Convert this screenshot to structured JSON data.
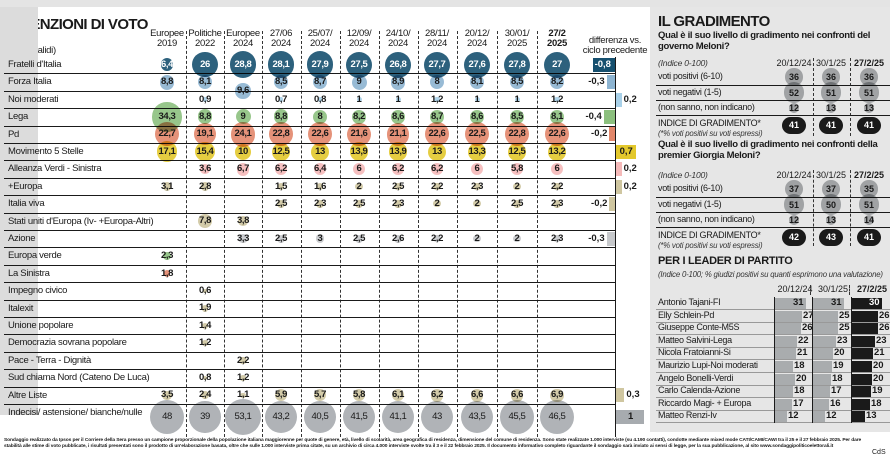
{
  "chart_data": {
    "type": "table",
    "title": "INTENZIONI DI VOTO",
    "label_header": [
      "LISTE",
      "(% su validi)"
    ],
    "columns": [
      [
        "Europee",
        "2019"
      ],
      [
        "Politiche",
        "2022"
      ],
      [
        "Europee",
        "2024"
      ],
      [
        "27/06",
        "2024"
      ],
      [
        "25/07/",
        "2024"
      ],
      [
        "12/09/",
        "2024"
      ],
      [
        "24/10/",
        "2024"
      ],
      [
        "28/11/",
        "2024"
      ],
      [
        "20/12/",
        "2024"
      ],
      [
        "30/01/",
        "2025"
      ],
      [
        "27/2",
        "2025"
      ]
    ],
    "diff_header": [
      "differenza vs.",
      "ciclo precedente"
    ],
    "rows": [
      {
        "name": "Fratelli d'Italia",
        "color": "#16506f",
        "values": [
          "6,4",
          "26",
          "28,8",
          "28,1",
          "27,9",
          "27,5",
          "26,8",
          "27,7",
          "27,6",
          "27,8",
          "27"
        ],
        "diff": "-0,8"
      },
      {
        "name": "Forza Italia",
        "color": "#8db4d1",
        "values": [
          "8,8",
          "8,1",
          "9,6",
          "8,5",
          "8,7",
          "9",
          "8,9",
          "8",
          "8,1",
          "8,5",
          "8,2"
        ],
        "diff": "-0,3",
        "combined_with_next_in": [
          2
        ]
      },
      {
        "name": "Noi moderati",
        "color": "#a8d0e8",
        "values": [
          null,
          "0,9",
          null,
          "0,7",
          "0,8",
          "1",
          "1",
          "1,2",
          "1",
          "1",
          "1,2"
        ],
        "diff": "0,2"
      },
      {
        "name": "Lega",
        "color": "#8cc07e",
        "values": [
          "34,3",
          "8,8",
          "9",
          "8,8",
          "8",
          "8,2",
          "8,6",
          "8,7",
          "8,6",
          "8,5",
          "8,1"
        ],
        "diff": "-0,4"
      },
      {
        "name": "Pd",
        "color": "#e2866a",
        "values": [
          "22,7",
          "19,1",
          "24,1",
          "22,8",
          "22,6",
          "21,6",
          "21,1",
          "22,6",
          "22,5",
          "22,8",
          "22,6"
        ],
        "diff": "-0,2"
      },
      {
        "name": "Movimento 5 Stelle",
        "color": "#e3c82c",
        "values": [
          "17,1",
          "15,4",
          "10",
          "12,5",
          "13",
          "13,9",
          "13,9",
          "13",
          "13,3",
          "12,5",
          "13,2"
        ],
        "diff": "0,7"
      },
      {
        "name": "Alleanza Verdi - Sinistra",
        "color": "#f5b9b9",
        "values": [
          null,
          "3,6",
          "6,7",
          "6,2",
          "6,4",
          "6",
          "6,2",
          "6,2",
          "6",
          "5,8",
          "6"
        ],
        "diff": "0,2"
      },
      {
        "name": "+Europa",
        "color": "#cfc6a0",
        "values": [
          "3,1",
          "2,8",
          null,
          "1,5",
          "1,6",
          "2",
          "2,5",
          "2,2",
          "2,3",
          "2",
          "2,2"
        ],
        "diff": "0,2"
      },
      {
        "name": "Italia viva",
        "color": "#cfc6a0",
        "values": [
          null,
          null,
          null,
          "2,5",
          "2,3",
          "2,5",
          "2,3",
          "2",
          "2",
          "2,5",
          "2,3"
        ],
        "diff": "-0,2"
      },
      {
        "name": "Stati uniti d'Europa (Iv- +Europa-Altri)",
        "color": "#cfc6a0",
        "values": [
          null,
          "7,8",
          "3,8",
          null,
          null,
          null,
          null,
          null,
          null,
          null,
          null
        ],
        "diff": null
      },
      {
        "name": "Azione",
        "color": "#c6c8cb",
        "values": [
          null,
          null,
          "3,3",
          "2,5",
          "3",
          "2,5",
          "2,6",
          "2,2",
          "2",
          "2",
          "2,3"
        ],
        "diff": "-0,3"
      },
      {
        "name": "Europa verde",
        "color": "#8cc07e",
        "values": [
          "2,3",
          null,
          null,
          null,
          null,
          null,
          null,
          null,
          null,
          null,
          null
        ],
        "diff": null
      },
      {
        "name": "La Sinistra",
        "color": "#e2866a",
        "values": [
          "1,8",
          null,
          null,
          null,
          null,
          null,
          null,
          null,
          null,
          null,
          null
        ],
        "diff": null
      },
      {
        "name": "Impegno civico",
        "color": "#cfc6a0",
        "values": [
          null,
          "0,6",
          null,
          null,
          null,
          null,
          null,
          null,
          null,
          null,
          null
        ],
        "diff": null
      },
      {
        "name": "Italexit",
        "color": "#cfc6a0",
        "values": [
          null,
          "1,9",
          null,
          null,
          null,
          null,
          null,
          null,
          null,
          null,
          null
        ],
        "diff": null
      },
      {
        "name": "Unione popolare",
        "color": "#cfc6a0",
        "values": [
          null,
          "1,4",
          null,
          null,
          null,
          null,
          null,
          null,
          null,
          null,
          null
        ],
        "diff": null
      },
      {
        "name": "Democrazia sovrana popolare",
        "color": "#cfc6a0",
        "values": [
          null,
          "1,2",
          null,
          null,
          null,
          null,
          null,
          null,
          null,
          null,
          null
        ],
        "diff": null
      },
      {
        "name": "Pace - Terra - Dignità",
        "color": "#cfc6a0",
        "values": [
          null,
          null,
          "2,2",
          null,
          null,
          null,
          null,
          null,
          null,
          null,
          null
        ],
        "diff": null
      },
      {
        "name": "Sud chiama Nord (Cateno De Luca)",
        "color": "#cfc6a0",
        "values": [
          null,
          "0,8",
          "1,2",
          null,
          null,
          null,
          null,
          null,
          null,
          null,
          null
        ],
        "diff": null
      },
      {
        "name": "Altre Liste",
        "color": "#cfc6a0",
        "values": [
          "3,5",
          "2,4",
          "1,1",
          "5,9",
          "5,7",
          "5,8",
          "6,1",
          "6,2",
          "6,6",
          "6,6",
          "6,9"
        ],
        "diff": "0,3"
      },
      {
        "name": "Indecisi/ astensione/ bianche/nulle",
        "color": "#a7abaf",
        "values": [
          "48",
          "39",
          "53,1",
          "43,2",
          "40,5",
          "41,5",
          "41,1",
          "43",
          "43,5",
          "45,5",
          "46,5"
        ],
        "diff": "1"
      }
    ],
    "highlight_column": 10
  },
  "gradimento": {
    "title": "IL GRADIMENTO",
    "dates": [
      "20/12/24",
      "30/1/25",
      "27/2/25"
    ],
    "index_note": "(Indice 0-100)",
    "tables": [
      {
        "question": "Qual è il suo livello di gradimento nei confronti del governo Meloni?",
        "rows": [
          {
            "label": "voti positivi (6-10)",
            "values": [
              "36",
              "36",
              "36"
            ]
          },
          {
            "label": "voti negativi (1-5)",
            "values": [
              "52",
              "51",
              "51"
            ]
          },
          {
            "label": "(non sanno, non indicano)",
            "values": [
              "12",
              "13",
              "13"
            ]
          }
        ],
        "index_label": "INDICE DI GRADIMENTO*",
        "index_sub": "(*% voti positivi su voti espressi)",
        "index_values": [
          "41",
          "41",
          "41"
        ]
      },
      {
        "question": "Qual è il suo livello di gradimento nei confronti della premier Giorgia Meloni?",
        "rows": [
          {
            "label": "voti positivi (6-10)",
            "values": [
              "37",
              "37",
              "35"
            ]
          },
          {
            "label": "voti negativi (1-5)",
            "values": [
              "51",
              "50",
              "51"
            ]
          },
          {
            "label": "(non sanno, non indicano)",
            "values": [
              "12",
              "13",
              "14"
            ]
          }
        ],
        "index_label": "INDICE DI GRADIMENTO*",
        "index_sub": "(*% voti positivi su voti espressi)",
        "index_values": [
          "42",
          "43",
          "41"
        ]
      }
    ]
  },
  "leaders": {
    "title": "PER I LEADER DI PARTITO",
    "subtitle": "(Indice 0-100; % giudizi positivi su quanti esprimono una valutazione)",
    "dates": [
      "20/12/24",
      "30/1/25",
      "27/2/25"
    ],
    "rows": [
      {
        "name": "Antonio Tajani-FI",
        "values": [
          31,
          31,
          30
        ]
      },
      {
        "name": "Elly Schlein-Pd",
        "values": [
          27,
          25,
          26
        ]
      },
      {
        "name": "Giuseppe Conte-M5S",
        "values": [
          26,
          25,
          26
        ]
      },
      {
        "name": "Matteo Salvini-Lega",
        "values": [
          22,
          23,
          23
        ]
      },
      {
        "name": "Nicola Fratoianni-Si",
        "values": [
          21,
          20,
          21
        ]
      },
      {
        "name": "Maurizio Lupi-Noi moderati",
        "values": [
          18,
          19,
          20
        ]
      },
      {
        "name": "Angelo Bonelli-Verdi",
        "values": [
          20,
          18,
          20
        ]
      },
      {
        "name": "Carlo Calenda-Azione",
        "values": [
          18,
          17,
          19
        ]
      },
      {
        "name": "Riccardo Magi- + Europa",
        "values": [
          17,
          16,
          18
        ]
      },
      {
        "name": "Matteo Renzi-Iv",
        "values": [
          12,
          12,
          13
        ]
      }
    ]
  },
  "footnote": "Sondaggio realizzato da Ipsos per il Corriere della Sera presso un campione proporzionale della popolazione italiana maggiorenne per quote di genere, età, livello di scolarità, area geografica di residenza, dimensione del comune di residenza. Sono state realizzate 1.000 interviste (su 4.190 contatti), condotte mediante mixed mode CATI/CAMI/CAWI tra il 25 e il 27 febbraio 2025. Per dare stabilità alle stime di voto pubblicate, i risultati presentati sono il prodotto di un'elaborazione basata, oltre che sulle 1.000 interviste prima citate, su un archivio di circa 4.000 interviste svolte tra il 3 e il 22 febbraio 2025. Il documento informativo completo riguardante il sondaggio sarà inviato ai sensi di legge, per la sua pubblicazione, al sito www.sondaggipoliticoelettorali.it",
  "credit": "CdS"
}
